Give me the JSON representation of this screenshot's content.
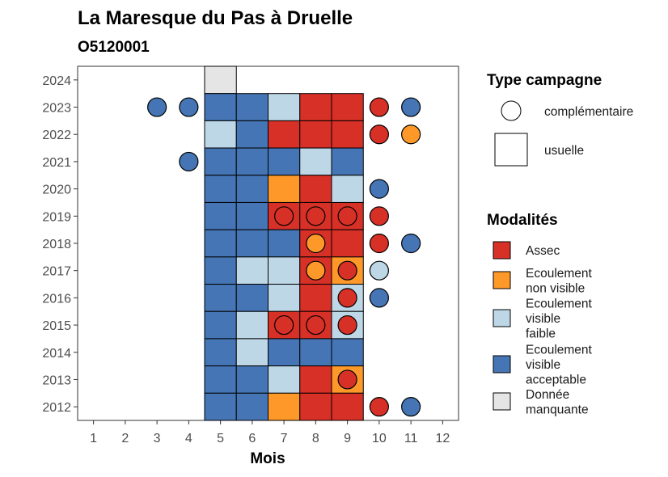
{
  "chart_data": {
    "type": "heatmap",
    "title": "La Maresque du Pas à Druelle",
    "subtitle": "O5120001",
    "xlabel": "Mois",
    "ylabel": "",
    "x_ticks": [
      "1",
      "2",
      "3",
      "4",
      "5",
      "6",
      "7",
      "8",
      "9",
      "10",
      "11",
      "12"
    ],
    "y_ticks": [
      "2012",
      "2013",
      "2014",
      "2015",
      "2016",
      "2017",
      "2018",
      "2019",
      "2020",
      "2021",
      "2022",
      "2023",
      "2024"
    ],
    "xlim": [
      0.5,
      12.5
    ],
    "ylim": [
      2011.5,
      2024.5
    ],
    "grid": false,
    "legend_position": "right",
    "colors": {
      "Assec": "#d73027",
      "Ecoulement non visible": "#fe9929",
      "Ecoulement visible faible": "#bdd7e7",
      "Ecoulement visible acceptable": "#4575b4",
      "Donnée manquante": "#e5e5e5"
    },
    "legend_campagne": {
      "title": "Type campagne",
      "items": [
        {
          "key": "complementaire",
          "label": "complémentaire",
          "shape": "circle"
        },
        {
          "key": "usuelle",
          "label": "usuelle",
          "shape": "square"
        }
      ]
    },
    "legend_modalites": {
      "title": "Modalités",
      "items": [
        {
          "key": "Assec",
          "lines": [
            "Assec"
          ]
        },
        {
          "key": "Ecoulement non visible",
          "lines": [
            "Ecoulement",
            "non visible"
          ]
        },
        {
          "key": "Ecoulement visible faible",
          "lines": [
            "Ecoulement",
            "visible",
            "faible"
          ]
        },
        {
          "key": "Ecoulement visible acceptable",
          "lines": [
            "Ecoulement",
            "visible",
            "acceptable"
          ]
        },
        {
          "key": "Donnée manquante",
          "lines": [
            "Donnée",
            "manquante"
          ]
        }
      ]
    },
    "usuelle": [
      {
        "year": 2024,
        "month": 5,
        "m": "Donnée manquante"
      },
      {
        "year": 2023,
        "month": 5,
        "m": "Ecoulement visible acceptable"
      },
      {
        "year": 2023,
        "month": 6,
        "m": "Ecoulement visible acceptable"
      },
      {
        "year": 2023,
        "month": 7,
        "m": "Ecoulement visible faible"
      },
      {
        "year": 2023,
        "month": 8,
        "m": "Assec"
      },
      {
        "year": 2023,
        "month": 9,
        "m": "Assec"
      },
      {
        "year": 2022,
        "month": 5,
        "m": "Ecoulement visible faible"
      },
      {
        "year": 2022,
        "month": 6,
        "m": "Ecoulement visible acceptable"
      },
      {
        "year": 2022,
        "month": 7,
        "m": "Assec"
      },
      {
        "year": 2022,
        "month": 8,
        "m": "Assec"
      },
      {
        "year": 2022,
        "month": 9,
        "m": "Assec"
      },
      {
        "year": 2021,
        "month": 5,
        "m": "Ecoulement visible acceptable"
      },
      {
        "year": 2021,
        "month": 6,
        "m": "Ecoulement visible acceptable"
      },
      {
        "year": 2021,
        "month": 7,
        "m": "Ecoulement visible acceptable"
      },
      {
        "year": 2021,
        "month": 8,
        "m": "Ecoulement visible faible"
      },
      {
        "year": 2021,
        "month": 9,
        "m": "Ecoulement visible acceptable"
      },
      {
        "year": 2020,
        "month": 5,
        "m": "Ecoulement visible acceptable"
      },
      {
        "year": 2020,
        "month": 6,
        "m": "Ecoulement visible acceptable"
      },
      {
        "year": 2020,
        "month": 7,
        "m": "Ecoulement non visible"
      },
      {
        "year": 2020,
        "month": 8,
        "m": "Assec"
      },
      {
        "year": 2020,
        "month": 9,
        "m": "Ecoulement visible faible"
      },
      {
        "year": 2019,
        "month": 5,
        "m": "Ecoulement visible acceptable"
      },
      {
        "year": 2019,
        "month": 6,
        "m": "Ecoulement visible acceptable"
      },
      {
        "year": 2019,
        "month": 7,
        "m": "Assec"
      },
      {
        "year": 2019,
        "month": 8,
        "m": "Assec"
      },
      {
        "year": 2019,
        "month": 9,
        "m": "Assec"
      },
      {
        "year": 2018,
        "month": 5,
        "m": "Ecoulement visible acceptable"
      },
      {
        "year": 2018,
        "month": 6,
        "m": "Ecoulement visible acceptable"
      },
      {
        "year": 2018,
        "month": 7,
        "m": "Ecoulement visible acceptable"
      },
      {
        "year": 2018,
        "month": 8,
        "m": "Assec"
      },
      {
        "year": 2018,
        "month": 9,
        "m": "Assec"
      },
      {
        "year": 2017,
        "month": 5,
        "m": "Ecoulement visible acceptable"
      },
      {
        "year": 2017,
        "month": 6,
        "m": "Ecoulement visible faible"
      },
      {
        "year": 2017,
        "month": 7,
        "m": "Ecoulement visible faible"
      },
      {
        "year": 2017,
        "month": 8,
        "m": "Assec"
      },
      {
        "year": 2017,
        "month": 9,
        "m": "Ecoulement non visible"
      },
      {
        "year": 2016,
        "month": 5,
        "m": "Ecoulement visible acceptable"
      },
      {
        "year": 2016,
        "month": 6,
        "m": "Ecoulement visible acceptable"
      },
      {
        "year": 2016,
        "month": 7,
        "m": "Ecoulement visible faible"
      },
      {
        "year": 2016,
        "month": 8,
        "m": "Assec"
      },
      {
        "year": 2016,
        "month": 9,
        "m": "Ecoulement visible faible"
      },
      {
        "year": 2015,
        "month": 5,
        "m": "Ecoulement visible acceptable"
      },
      {
        "year": 2015,
        "month": 6,
        "m": "Ecoulement visible faible"
      },
      {
        "year": 2015,
        "month": 7,
        "m": "Assec"
      },
      {
        "year": 2015,
        "month": 8,
        "m": "Assec"
      },
      {
        "year": 2015,
        "month": 9,
        "m": "Ecoulement visible faible"
      },
      {
        "year": 2014,
        "month": 5,
        "m": "Ecoulement visible acceptable"
      },
      {
        "year": 2014,
        "month": 6,
        "m": "Ecoulement visible faible"
      },
      {
        "year": 2014,
        "month": 7,
        "m": "Ecoulement visible acceptable"
      },
      {
        "year": 2014,
        "month": 8,
        "m": "Ecoulement visible acceptable"
      },
      {
        "year": 2014,
        "month": 9,
        "m": "Ecoulement visible acceptable"
      },
      {
        "year": 2013,
        "month": 5,
        "m": "Ecoulement visible acceptable"
      },
      {
        "year": 2013,
        "month": 6,
        "m": "Ecoulement visible acceptable"
      },
      {
        "year": 2013,
        "month": 7,
        "m": "Ecoulement visible faible"
      },
      {
        "year": 2013,
        "month": 8,
        "m": "Assec"
      },
      {
        "year": 2013,
        "month": 9,
        "m": "Ecoulement non visible"
      },
      {
        "year": 2012,
        "month": 5,
        "m": "Ecoulement visible acceptable"
      },
      {
        "year": 2012,
        "month": 6,
        "m": "Ecoulement visible acceptable"
      },
      {
        "year": 2012,
        "month": 7,
        "m": "Ecoulement non visible"
      },
      {
        "year": 2012,
        "month": 8,
        "m": "Assec"
      },
      {
        "year": 2012,
        "month": 9,
        "m": "Assec"
      }
    ],
    "complementaire": [
      {
        "year": 2023,
        "month": 3,
        "m": "Ecoulement visible acceptable"
      },
      {
        "year": 2023,
        "month": 4,
        "m": "Ecoulement visible acceptable"
      },
      {
        "year": 2023,
        "month": 10,
        "m": "Assec"
      },
      {
        "year": 2023,
        "month": 11,
        "m": "Ecoulement visible acceptable"
      },
      {
        "year": 2022,
        "month": 10,
        "m": "Assec"
      },
      {
        "year": 2022,
        "month": 11,
        "m": "Ecoulement non visible"
      },
      {
        "year": 2021,
        "month": 4,
        "m": "Ecoulement visible acceptable"
      },
      {
        "year": 2020,
        "month": 10,
        "m": "Ecoulement visible acceptable"
      },
      {
        "year": 2019,
        "month": 7,
        "m": "Assec"
      },
      {
        "year": 2019,
        "month": 8,
        "m": "Assec"
      },
      {
        "year": 2019,
        "month": 9,
        "m": "Assec"
      },
      {
        "year": 2019,
        "month": 10,
        "m": "Assec"
      },
      {
        "year": 2018,
        "month": 8,
        "m": "Ecoulement non visible"
      },
      {
        "year": 2018,
        "month": 10,
        "m": "Assec"
      },
      {
        "year": 2018,
        "month": 11,
        "m": "Ecoulement visible acceptable"
      },
      {
        "year": 2017,
        "month": 8,
        "m": "Ecoulement non visible"
      },
      {
        "year": 2017,
        "month": 9,
        "m": "Assec"
      },
      {
        "year": 2017,
        "month": 10,
        "m": "Ecoulement visible faible"
      },
      {
        "year": 2016,
        "month": 9,
        "m": "Assec"
      },
      {
        "year": 2016,
        "month": 10,
        "m": "Ecoulement visible acceptable"
      },
      {
        "year": 2015,
        "month": 7,
        "m": "Assec"
      },
      {
        "year": 2015,
        "month": 8,
        "m": "Assec"
      },
      {
        "year": 2015,
        "month": 9,
        "m": "Assec"
      },
      {
        "year": 2013,
        "month": 9,
        "m": "Assec"
      },
      {
        "year": 2012,
        "month": 10,
        "m": "Assec"
      },
      {
        "year": 2012,
        "month": 11,
        "m": "Ecoulement visible acceptable"
      }
    ]
  }
}
